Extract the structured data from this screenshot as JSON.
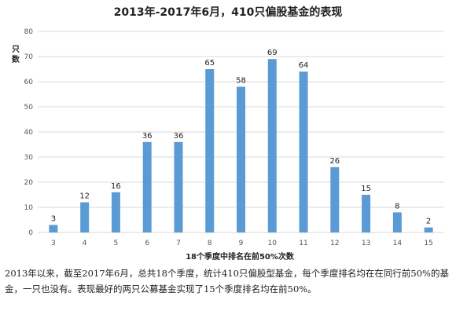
{
  "chart_data": {
    "type": "bar",
    "title": "2013年-2017年6月，410只偏股基金的表现",
    "ylabel": "只数",
    "xlabel": "18个季度中排名在前50%次数",
    "categories": [
      "3",
      "4",
      "5",
      "6",
      "7",
      "8",
      "9",
      "10",
      "11",
      "12",
      "13",
      "14",
      "15"
    ],
    "values": [
      3,
      12,
      16,
      36,
      36,
      65,
      58,
      69,
      64,
      26,
      15,
      8,
      2
    ],
    "ylim": [
      0,
      80
    ],
    "yticks": [
      0,
      10,
      20,
      30,
      40,
      50,
      60,
      70,
      80
    ],
    "grid": true,
    "bar_color": "#5b9bd5"
  },
  "caption": "2013年以来，截至2017年6月，总共18个季度，统计410只偏股型基金，每个季度排名均在在同行前50%的基金，一只也没有。表现最好的两只公募基金实现了15个季度排名均在前50%。"
}
